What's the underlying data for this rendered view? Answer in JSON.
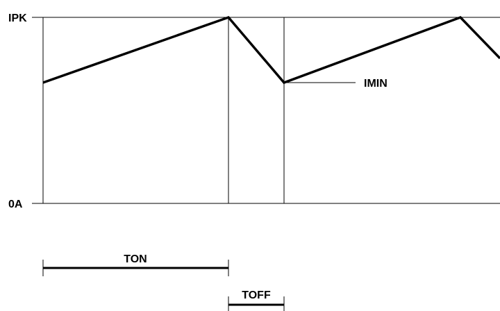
{
  "labels": {
    "ipk": "IPK",
    "zero": "0A",
    "imin": "IMIN",
    "ton": "TON",
    "toff": "TOFF"
  },
  "colors": {
    "line": "#000000",
    "background": "#ffffff"
  }
}
